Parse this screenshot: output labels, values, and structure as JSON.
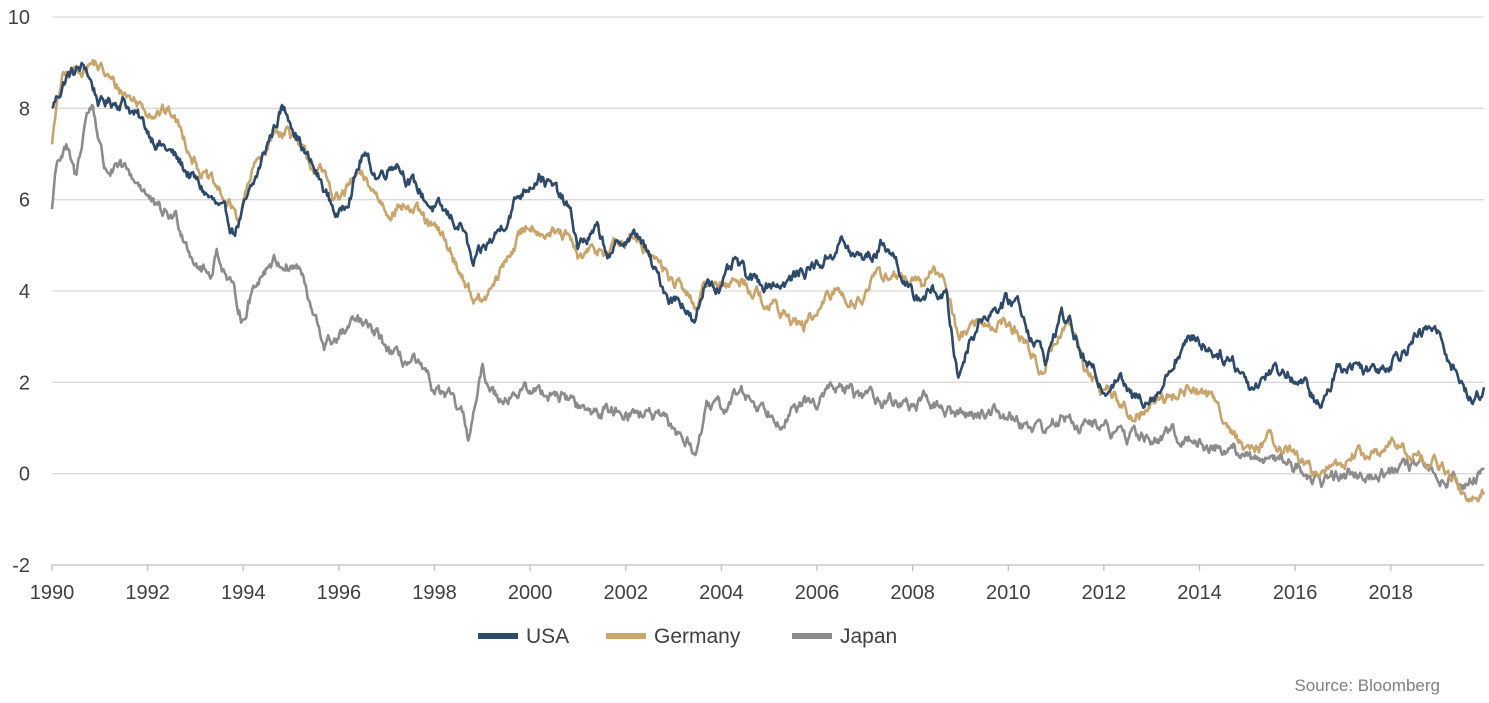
{
  "chart_data": {
    "type": "line",
    "title": "",
    "xlabel": "",
    "ylabel": "",
    "xlim": [
      1990,
      2019.95
    ],
    "ylim": [
      -2,
      10
    ],
    "x_ticks": [
      "1990",
      "1992",
      "1994",
      "1996",
      "1998",
      "2000",
      "2002",
      "2004",
      "2006",
      "2008",
      "2010",
      "2012",
      "2014",
      "2016",
      "2018"
    ],
    "y_ticks": [
      "10",
      "8",
      "6",
      "4",
      "2",
      "0",
      "-2"
    ],
    "grid": "horizontal",
    "legend_position": "bottom-center",
    "source": "Source: Bloomberg",
    "series": [
      {
        "name": "USA",
        "color": "#2e4a6b",
        "points": [
          [
            1990.0,
            8.0
          ],
          [
            1990.3,
            8.7
          ],
          [
            1990.7,
            8.9
          ],
          [
            1991.0,
            8.1
          ],
          [
            1991.5,
            8.2
          ],
          [
            1992.0,
            7.5
          ],
          [
            1992.5,
            7.0
          ],
          [
            1993.0,
            6.4
          ],
          [
            1993.4,
            5.9
          ],
          [
            1993.8,
            5.3
          ],
          [
            1994.2,
            6.2
          ],
          [
            1994.5,
            7.2
          ],
          [
            1994.8,
            8.0
          ],
          [
            1995.0,
            7.8
          ],
          [
            1995.3,
            7.0
          ],
          [
            1995.6,
            6.4
          ],
          [
            1996.0,
            5.6
          ],
          [
            1996.3,
            6.4
          ],
          [
            1996.5,
            7.0
          ],
          [
            1996.8,
            6.5
          ],
          [
            1997.2,
            6.9
          ],
          [
            1997.5,
            6.4
          ],
          [
            1997.9,
            5.9
          ],
          [
            1998.3,
            5.6
          ],
          [
            1998.6,
            5.4
          ],
          [
            1998.8,
            4.5
          ],
          [
            1999.0,
            4.8
          ],
          [
            1999.4,
            5.4
          ],
          [
            1999.7,
            6.0
          ],
          [
            2000.0,
            6.4
          ],
          [
            2000.2,
            6.6
          ],
          [
            2000.5,
            6.2
          ],
          [
            2000.8,
            5.8
          ],
          [
            2001.0,
            5.0
          ],
          [
            2001.4,
            5.3
          ],
          [
            2001.7,
            4.7
          ],
          [
            2001.9,
            5.1
          ],
          [
            2002.3,
            5.2
          ],
          [
            2002.6,
            4.4
          ],
          [
            2002.9,
            3.9
          ],
          [
            2003.2,
            3.8
          ],
          [
            2003.45,
            3.2
          ],
          [
            2003.7,
            4.3
          ],
          [
            2004.0,
            4.1
          ],
          [
            2004.3,
            4.6
          ],
          [
            2004.6,
            4.2
          ],
          [
            2005.0,
            4.2
          ],
          [
            2005.4,
            4.2
          ],
          [
            2005.8,
            4.5
          ],
          [
            2006.2,
            4.7
          ],
          [
            2006.5,
            5.1
          ],
          [
            2006.8,
            4.7
          ],
          [
            2007.2,
            4.8
          ],
          [
            2007.4,
            5.1
          ],
          [
            2007.7,
            4.6
          ],
          [
            2008.0,
            3.8
          ],
          [
            2008.4,
            4.0
          ],
          [
            2008.7,
            3.9
          ],
          [
            2008.95,
            2.1
          ],
          [
            2009.2,
            3.0
          ],
          [
            2009.5,
            3.5
          ],
          [
            2009.8,
            3.7
          ],
          [
            2010.2,
            3.8
          ],
          [
            2010.5,
            3.0
          ],
          [
            2010.8,
            2.5
          ],
          [
            2011.1,
            3.5
          ],
          [
            2011.3,
            3.3
          ],
          [
            2011.6,
            2.4
          ],
          [
            2012.0,
            1.9
          ],
          [
            2012.3,
            2.2
          ],
          [
            2012.6,
            1.6
          ],
          [
            2012.9,
            1.7
          ],
          [
            2013.2,
            1.9
          ],
          [
            2013.5,
            2.6
          ],
          [
            2013.9,
            3.0
          ],
          [
            2014.3,
            2.7
          ],
          [
            2014.7,
            2.5
          ],
          [
            2015.1,
            1.9
          ],
          [
            2015.5,
            2.3
          ],
          [
            2015.9,
            2.2
          ],
          [
            2016.3,
            1.8
          ],
          [
            2016.55,
            1.4
          ],
          [
            2016.9,
            2.4
          ],
          [
            2017.2,
            2.4
          ],
          [
            2017.6,
            2.3
          ],
          [
            2018.0,
            2.5
          ],
          [
            2018.4,
            2.9
          ],
          [
            2018.9,
            3.2
          ],
          [
            2019.2,
            2.6
          ],
          [
            2019.5,
            2.0
          ],
          [
            2019.7,
            1.5
          ],
          [
            2019.95,
            1.9
          ]
        ]
      },
      {
        "name": "Germany",
        "color": "#c9a46b",
        "points": [
          [
            1990.0,
            7.3
          ],
          [
            1990.2,
            8.6
          ],
          [
            1990.6,
            8.9
          ],
          [
            1990.9,
            9.0
          ],
          [
            1991.3,
            8.5
          ],
          [
            1991.7,
            8.2
          ],
          [
            1992.0,
            8.0
          ],
          [
            1992.5,
            7.9
          ],
          [
            1992.8,
            7.3
          ],
          [
            1993.2,
            6.5
          ],
          [
            1993.6,
            6.0
          ],
          [
            1993.9,
            5.6
          ],
          [
            1994.2,
            6.6
          ],
          [
            1994.6,
            7.4
          ],
          [
            1994.9,
            7.6
          ],
          [
            1995.2,
            7.0
          ],
          [
            1995.6,
            6.6
          ],
          [
            1996.0,
            6.0
          ],
          [
            1996.4,
            6.5
          ],
          [
            1996.7,
            6.2
          ],
          [
            1997.0,
            5.8
          ],
          [
            1997.4,
            5.9
          ],
          [
            1997.8,
            5.5
          ],
          [
            1998.2,
            5.1
          ],
          [
            1998.5,
            4.5
          ],
          [
            1998.8,
            3.9
          ],
          [
            1999.0,
            3.7
          ],
          [
            1999.3,
            4.2
          ],
          [
            1999.6,
            4.9
          ],
          [
            2000.0,
            5.5
          ],
          [
            2000.4,
            5.3
          ],
          [
            2000.8,
            5.1
          ],
          [
            2001.0,
            4.7
          ],
          [
            2001.5,
            4.9
          ],
          [
            2001.9,
            5.0
          ],
          [
            2002.3,
            5.2
          ],
          [
            2002.6,
            4.7
          ],
          [
            2002.9,
            4.3
          ],
          [
            2003.2,
            4.0
          ],
          [
            2003.45,
            3.7
          ],
          [
            2003.8,
            4.2
          ],
          [
            2004.1,
            4.2
          ],
          [
            2004.5,
            4.2
          ],
          [
            2004.9,
            3.8
          ],
          [
            2005.3,
            3.5
          ],
          [
            2005.7,
            3.2
          ],
          [
            2006.0,
            3.5
          ],
          [
            2006.4,
            4.0
          ],
          [
            2006.8,
            3.8
          ],
          [
            2007.2,
            4.2
          ],
          [
            2007.5,
            4.4
          ],
          [
            2007.9,
            4.2
          ],
          [
            2008.2,
            4.0
          ],
          [
            2008.45,
            4.6
          ],
          [
            2008.7,
            4.1
          ],
          [
            2008.95,
            3.0
          ],
          [
            2009.3,
            3.3
          ],
          [
            2009.7,
            3.3
          ],
          [
            2010.0,
            3.3
          ],
          [
            2010.4,
            2.8
          ],
          [
            2010.7,
            2.2
          ],
          [
            2011.0,
            3.0
          ],
          [
            2011.3,
            3.3
          ],
          [
            2011.6,
            2.3
          ],
          [
            2011.9,
            1.9
          ],
          [
            2012.2,
            1.8
          ],
          [
            2012.5,
            1.3
          ],
          [
            2012.9,
            1.4
          ],
          [
            2013.2,
            1.6
          ],
          [
            2013.6,
            1.8
          ],
          [
            2013.9,
            1.9
          ],
          [
            2014.3,
            1.6
          ],
          [
            2014.7,
            1.0
          ],
          [
            2015.05,
            0.3
          ],
          [
            2015.4,
            0.8
          ],
          [
            2015.8,
            0.6
          ],
          [
            2016.2,
            0.2
          ],
          [
            2016.55,
            -0.1
          ],
          [
            2016.9,
            0.2
          ],
          [
            2017.2,
            0.4
          ],
          [
            2017.6,
            0.4
          ],
          [
            2018.0,
            0.6
          ],
          [
            2018.4,
            0.5
          ],
          [
            2018.8,
            0.3
          ],
          [
            2019.1,
            0.1
          ],
          [
            2019.4,
            -0.3
          ],
          [
            2019.65,
            -0.7
          ],
          [
            2019.95,
            -0.3
          ]
        ]
      },
      {
        "name": "Japan",
        "color": "#8c8c8c",
        "points": [
          [
            1990.0,
            5.8
          ],
          [
            1990.1,
            6.9
          ],
          [
            1990.3,
            7.1
          ],
          [
            1990.5,
            6.4
          ],
          [
            1990.7,
            7.8
          ],
          [
            1990.85,
            8.1
          ],
          [
            1991.1,
            6.7
          ],
          [
            1991.5,
            6.6
          ],
          [
            1991.9,
            6.3
          ],
          [
            1992.2,
            5.7
          ],
          [
            1992.6,
            5.6
          ],
          [
            1993.0,
            4.7
          ],
          [
            1993.3,
            4.3
          ],
          [
            1993.45,
            4.9
          ],
          [
            1993.8,
            3.9
          ],
          [
            1994.0,
            3.4
          ],
          [
            1994.3,
            4.3
          ],
          [
            1994.6,
            4.7
          ],
          [
            1994.9,
            4.6
          ],
          [
            1995.2,
            4.5
          ],
          [
            1995.4,
            3.6
          ],
          [
            1995.7,
            2.8
          ],
          [
            1996.0,
            3.0
          ],
          [
            1996.4,
            3.3
          ],
          [
            1996.8,
            3.0
          ],
          [
            1997.2,
            2.5
          ],
          [
            1997.6,
            2.4
          ],
          [
            1997.9,
            1.9
          ],
          [
            1998.3,
            1.6
          ],
          [
            1998.55,
            1.3
          ],
          [
            1998.7,
            0.8
          ],
          [
            1998.9,
            1.7
          ],
          [
            1999.0,
            2.2
          ],
          [
            1999.3,
            1.7
          ],
          [
            1999.7,
            1.8
          ],
          [
            2000.1,
            1.8
          ],
          [
            2000.5,
            1.8
          ],
          [
            2000.9,
            1.6
          ],
          [
            2001.2,
            1.3
          ],
          [
            2001.6,
            1.4
          ],
          [
            2002.0,
            1.4
          ],
          [
            2002.5,
            1.3
          ],
          [
            2002.9,
            1.0
          ],
          [
            2003.2,
            0.8
          ],
          [
            2003.45,
            0.5
          ],
          [
            2003.7,
            1.4
          ],
          [
            2004.0,
            1.4
          ],
          [
            2004.4,
            1.8
          ],
          [
            2004.8,
            1.5
          ],
          [
            2005.2,
            1.3
          ],
          [
            2005.6,
            1.4
          ],
          [
            2006.0,
            1.6
          ],
          [
            2006.4,
            1.9
          ],
          [
            2006.8,
            1.7
          ],
          [
            2007.2,
            1.7
          ],
          [
            2007.6,
            1.6
          ],
          [
            2008.0,
            1.5
          ],
          [
            2008.4,
            1.6
          ],
          [
            2008.8,
            1.3
          ],
          [
            2009.1,
            1.3
          ],
          [
            2009.6,
            1.4
          ],
          [
            2010.0,
            1.3
          ],
          [
            2010.4,
            1.1
          ],
          [
            2010.8,
            1.0
          ],
          [
            2011.1,
            1.2
          ],
          [
            2011.5,
            1.1
          ],
          [
            2012.0,
            1.0
          ],
          [
            2012.5,
            0.8
          ],
          [
            2012.9,
            0.8
          ],
          [
            2013.2,
            0.7
          ],
          [
            2013.45,
            0.9
          ],
          [
            2013.9,
            0.7
          ],
          [
            2014.3,
            0.6
          ],
          [
            2014.7,
            0.5
          ],
          [
            2015.1,
            0.3
          ],
          [
            2015.5,
            0.4
          ],
          [
            2015.9,
            0.3
          ],
          [
            2016.2,
            0.0
          ],
          [
            2016.55,
            -0.2
          ],
          [
            2016.9,
            0.0
          ],
          [
            2017.3,
            0.0
          ],
          [
            2017.7,
            0.05
          ],
          [
            2018.1,
            0.05
          ],
          [
            2018.5,
            0.1
          ],
          [
            2018.9,
            0.05
          ],
          [
            2019.3,
            -0.1
          ],
          [
            2019.6,
            -0.2
          ],
          [
            2019.95,
            0.0
          ]
        ]
      }
    ]
  }
}
